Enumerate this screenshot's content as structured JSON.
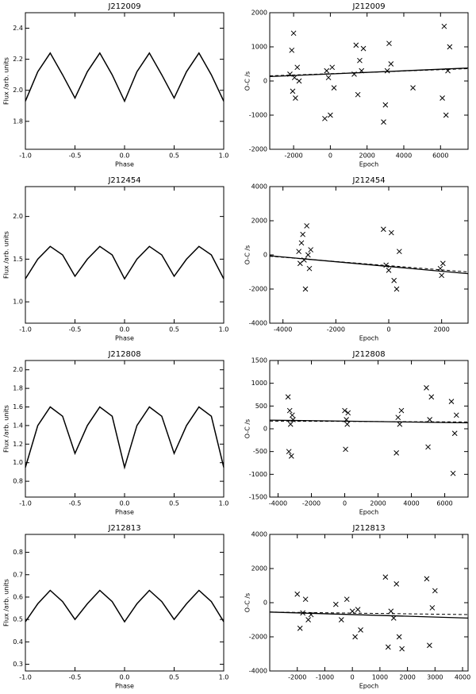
{
  "chart_data": [
    {
      "type": "line",
      "title": "J212009",
      "xlabel": "Phase",
      "ylabel": "Flux /arb. units",
      "x": [
        -1,
        -0.875,
        -0.75,
        -0.625,
        -0.5,
        -0.375,
        -0.25,
        -0.125,
        0,
        0.125,
        0.25,
        0.375,
        0.5,
        0.625,
        0.75,
        0.875,
        1
      ],
      "values": [
        1.93,
        2.12,
        2.24,
        2.1,
        1.95,
        2.12,
        2.24,
        2.1,
        1.93,
        2.12,
        2.24,
        2.1,
        1.95,
        2.12,
        2.24,
        2.1,
        1.93
      ],
      "xlim": [
        -1,
        1
      ],
      "xticks": [
        {
          "value": -1,
          "label": "-1.0"
        },
        -0.5,
        {
          "value": 0,
          "label": "0.0"
        },
        0.5,
        {
          "value": 1,
          "label": "1.0"
        }
      ],
      "ylim": [
        1.62,
        2.5
      ],
      "yticks": [
        1.8,
        {
          "value": 2,
          "label": "2.0"
        },
        2.2,
        2.4
      ]
    },
    {
      "type": "scatter",
      "title": "J212009",
      "xlabel": "Epoch",
      "ylabel": "O-C /s",
      "points": {
        "x": [
          -2200,
          -2100,
          -2050,
          -2000,
          -1950,
          -1900,
          -1800,
          -1700,
          -300,
          -200,
          -100,
          0,
          100,
          200,
          1300,
          1400,
          1500,
          1600,
          1700,
          1800,
          2900,
          3000,
          3100,
          3200,
          3300,
          4500,
          6100,
          6200,
          6300,
          6400,
          6500
        ],
        "values": [
          200,
          900,
          -300,
          1400,
          100,
          -500,
          400,
          0,
          -1100,
          300,
          100,
          -1000,
          400,
          -200,
          200,
          1050,
          -400,
          600,
          300,
          950,
          -1200,
          -700,
          300,
          1100,
          500,
          -200,
          -500,
          1600,
          -1000,
          300,
          1000
        ]
      },
      "fit": {
        "x": [
          -3300,
          7500
        ],
        "values": [
          130,
          380
        ]
      },
      "fit_dashed": {
        "x": [
          -3300,
          7500
        ],
        "values": [
          150,
          360
        ]
      },
      "xlim": [
        -3300,
        7500
      ],
      "xticks": [
        -2000,
        0,
        2000,
        4000,
        6000
      ],
      "ylim": [
        -2000,
        2000
      ],
      "yticks": [
        -2000,
        -1000,
        0,
        1000,
        2000
      ]
    },
    {
      "type": "line",
      "title": "J212454",
      "xlabel": "Phase",
      "ylabel": "Flux /arb. units",
      "x": [
        -1,
        -0.875,
        -0.75,
        -0.625,
        -0.5,
        -0.375,
        -0.25,
        -0.125,
        0,
        0.125,
        0.25,
        0.375,
        0.5,
        0.625,
        0.75,
        0.875,
        1
      ],
      "values": [
        1.27,
        1.5,
        1.65,
        1.55,
        1.3,
        1.5,
        1.65,
        1.55,
        1.27,
        1.5,
        1.65,
        1.55,
        1.3,
        1.5,
        1.65,
        1.55,
        1.27
      ],
      "xlim": [
        -1,
        1
      ],
      "xticks": [
        {
          "value": -1,
          "label": "-1.0"
        },
        -0.5,
        {
          "value": 0,
          "label": "0.0"
        },
        0.5,
        {
          "value": 1,
          "label": "1.0"
        }
      ],
      "ylim": [
        0.75,
        2.35
      ],
      "yticks": [
        {
          "value": 1,
          "label": "1.0"
        },
        1.5,
        {
          "value": 2,
          "label": "2.0"
        }
      ]
    },
    {
      "type": "scatter",
      "title": "J212454",
      "xlabel": "Epoch",
      "ylabel": "O-C /s",
      "points": {
        "x": [
          -3400,
          -3350,
          -3300,
          -3250,
          -3200,
          -3150,
          -3100,
          -3050,
          -3000,
          -2950,
          -200,
          -100,
          0,
          100,
          200,
          300,
          400,
          1950,
          2000,
          2050
        ],
        "values": [
          200,
          -500,
          700,
          1200,
          -300,
          -2000,
          1700,
          0,
          -800,
          300,
          1500,
          -600,
          -900,
          1300,
          -1500,
          -2000,
          200,
          -800,
          -1200,
          -500
        ]
      },
      "fit": {
        "x": [
          -4500,
          3000
        ],
        "values": [
          -50,
          -1100
        ]
      },
      "fit_dashed": {
        "x": [
          -4500,
          3000
        ],
        "values": [
          -80,
          -1000
        ]
      },
      "xlim": [
        -4500,
        3000
      ],
      "xticks": [
        -4000,
        -2000,
        0,
        2000
      ],
      "ylim": [
        -4000,
        4000
      ],
      "yticks": [
        -4000,
        -2000,
        0,
        2000,
        4000
      ]
    },
    {
      "type": "line",
      "title": "J212808",
      "xlabel": "Phase",
      "ylabel": "Flux /arb. units",
      "x": [
        -1,
        -0.875,
        -0.75,
        -0.625,
        -0.5,
        -0.375,
        -0.25,
        -0.125,
        0,
        0.125,
        0.25,
        0.375,
        0.5,
        0.625,
        0.75,
        0.875,
        1
      ],
      "values": [
        0.95,
        1.4,
        1.6,
        1.5,
        1.1,
        1.4,
        1.6,
        1.5,
        0.95,
        1.4,
        1.6,
        1.5,
        1.1,
        1.4,
        1.6,
        1.5,
        0.95
      ],
      "xlim": [
        -1,
        1
      ],
      "xticks": [
        {
          "value": -1,
          "label": "-1.0"
        },
        -0.5,
        {
          "value": 0,
          "label": "0.0"
        },
        0.5,
        {
          "value": 1,
          "label": "1.0"
        }
      ],
      "ylim": [
        0.63,
        2.1
      ],
      "yticks": [
        0.8,
        {
          "value": 1,
          "label": "1.0"
        },
        1.2,
        1.4,
        1.6,
        1.8,
        {
          "value": 2,
          "label": "2.0"
        }
      ]
    },
    {
      "type": "scatter",
      "title": "J212808",
      "xlabel": "Epoch",
      "ylabel": "O-C /s",
      "points": {
        "x": [
          -3400,
          -3350,
          -3300,
          -3250,
          -3200,
          -3150,
          -3100,
          0,
          50,
          100,
          150,
          200,
          3100,
          3200,
          3300,
          3400,
          4900,
          5000,
          5100,
          5200,
          6400,
          6500,
          6600,
          6700
        ],
        "values": [
          700,
          -500,
          400,
          100,
          -600,
          300,
          200,
          400,
          -450,
          200,
          100,
          350,
          -530,
          250,
          100,
          400,
          900,
          -400,
          200,
          700,
          600,
          -980,
          -100,
          300
        ]
      },
      "fit": {
        "x": [
          -4500,
          7400
        ],
        "values": [
          190,
          130
        ]
      },
      "fit_dashed": {
        "x": [
          -4500,
          7400
        ],
        "values": [
          170,
          150
        ]
      },
      "xlim": [
        -4500,
        7400
      ],
      "xticks": [
        -4000,
        -2000,
        0,
        2000,
        4000,
        6000
      ],
      "ylim": [
        -1500,
        1500
      ],
      "yticks": [
        -1500,
        -1000,
        -500,
        0,
        500,
        1000,
        1500
      ]
    },
    {
      "type": "line",
      "title": "J212813",
      "xlabel": "Phase",
      "ylabel": "Flux /arb. units",
      "x": [
        -1,
        -0.875,
        -0.75,
        -0.625,
        -0.5,
        -0.375,
        -0.25,
        -0.125,
        0,
        0.125,
        0.25,
        0.375,
        0.5,
        0.625,
        0.75,
        0.875,
        1
      ],
      "values": [
        0.49,
        0.57,
        0.63,
        0.58,
        0.5,
        0.57,
        0.63,
        0.58,
        0.49,
        0.57,
        0.63,
        0.58,
        0.5,
        0.57,
        0.63,
        0.58,
        0.49
      ],
      "xlim": [
        -1,
        1
      ],
      "xticks": [
        {
          "value": -1,
          "label": "-1.0"
        },
        -0.5,
        {
          "value": 0,
          "label": "0.0"
        },
        0.5,
        {
          "value": 1,
          "label": "1.0"
        }
      ],
      "ylim": [
        0.27,
        0.88
      ],
      "yticks": [
        0.3,
        0.4,
        0.5,
        0.6,
        0.7,
        0.8
      ]
    },
    {
      "type": "scatter",
      "title": "J212813",
      "xlabel": "Epoch",
      "ylabel": "O-C /s",
      "points": {
        "x": [
          -2000,
          -1900,
          -1800,
          -1700,
          -1600,
          -1500,
          -600,
          -400,
          -200,
          0,
          100,
          200,
          300,
          1200,
          1300,
          1400,
          1500,
          1600,
          1700,
          1800,
          2700,
          2800,
          2900,
          3000
        ],
        "values": [
          500,
          -1500,
          -600,
          200,
          -1000,
          -700,
          -100,
          -1000,
          200,
          -500,
          -2000,
          -400,
          -1600,
          1500,
          -2600,
          -500,
          -900,
          1100,
          -2000,
          -2700,
          1400,
          -2500,
          -300,
          700
        ]
      },
      "fit": {
        "x": [
          -3000,
          4200
        ],
        "values": [
          -550,
          -900
        ]
      },
      "fit_dashed": {
        "x": [
          -3000,
          4200
        ],
        "values": [
          -550,
          -700
        ]
      },
      "xlim": [
        -3000,
        4200
      ],
      "xticks": [
        -2000,
        -1000,
        0,
        1000,
        2000,
        3000,
        4000
      ],
      "ylim": [
        -4000,
        4000
      ],
      "yticks": [
        -4000,
        -2000,
        0,
        2000,
        4000
      ]
    }
  ]
}
